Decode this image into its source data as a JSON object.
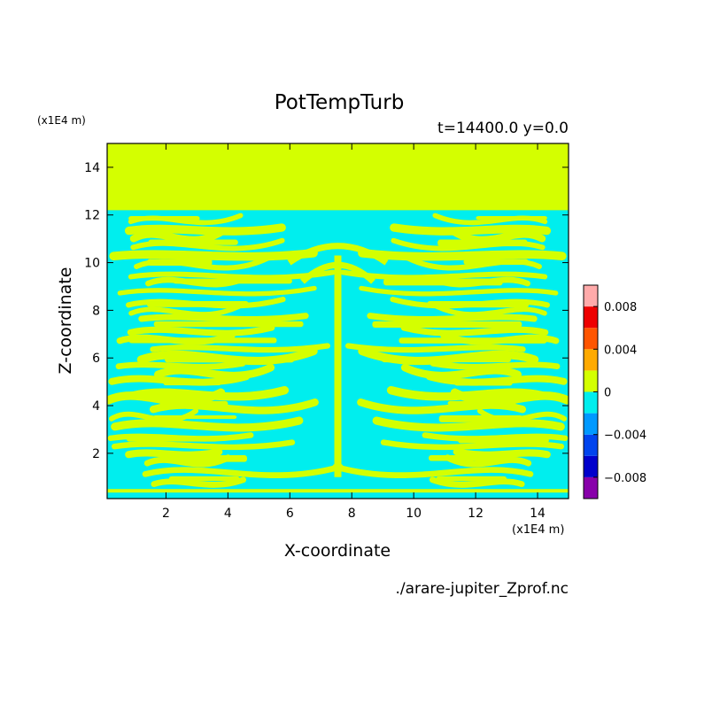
{
  "chart_data": {
    "type": "heatmap",
    "title": "PotTempTurb",
    "subtitle": "t=14400.0 y=0.0",
    "xlabel": "X-coordinate",
    "ylabel": "Z-coordinate",
    "x_unit": "(x1E4 m)",
    "y_unit": "(x1E4 m)",
    "source_file": "./arare-jupiter_Zprof.nc",
    "xlim": [
      0.1,
      15
    ],
    "ylim": [
      0.1,
      15
    ],
    "x_ticks": [
      2,
      4,
      6,
      8,
      10,
      12,
      14
    ],
    "y_ticks": [
      2,
      4,
      6,
      8,
      10,
      12,
      14
    ],
    "x_tick_labels": [
      "2",
      "4",
      "6",
      "8",
      "10",
      "12",
      "14"
    ],
    "y_tick_labels": [
      "2",
      "4",
      "6",
      "8",
      "10",
      "12",
      "14"
    ],
    "colorbar": {
      "levels": [
        -0.01,
        -0.008,
        -0.006,
        -0.004,
        -0.002,
        0,
        0.002,
        0.004,
        0.006,
        0.008,
        0.01
      ],
      "colors": [
        "#8800aa",
        "#0000cc",
        "#0044ee",
        "#0099ff",
        "#00eeee",
        "#d4ff00",
        "#ffaa00",
        "#ff5500",
        "#ee0000",
        "#ffaaaa"
      ],
      "tick_values": [
        0.008,
        0.004,
        0,
        -0.004,
        -0.008
      ],
      "tick_labels": [
        "0.008",
        "0.004",
        "0",
        "−0.004",
        "−0.008"
      ]
    },
    "field_description": {
      "upper_layer_above_z": 12.2,
      "upper_layer_value_band": "0 to 0.002",
      "lower_region_values": "alternating bands between -0.002 and 0.002"
    }
  }
}
